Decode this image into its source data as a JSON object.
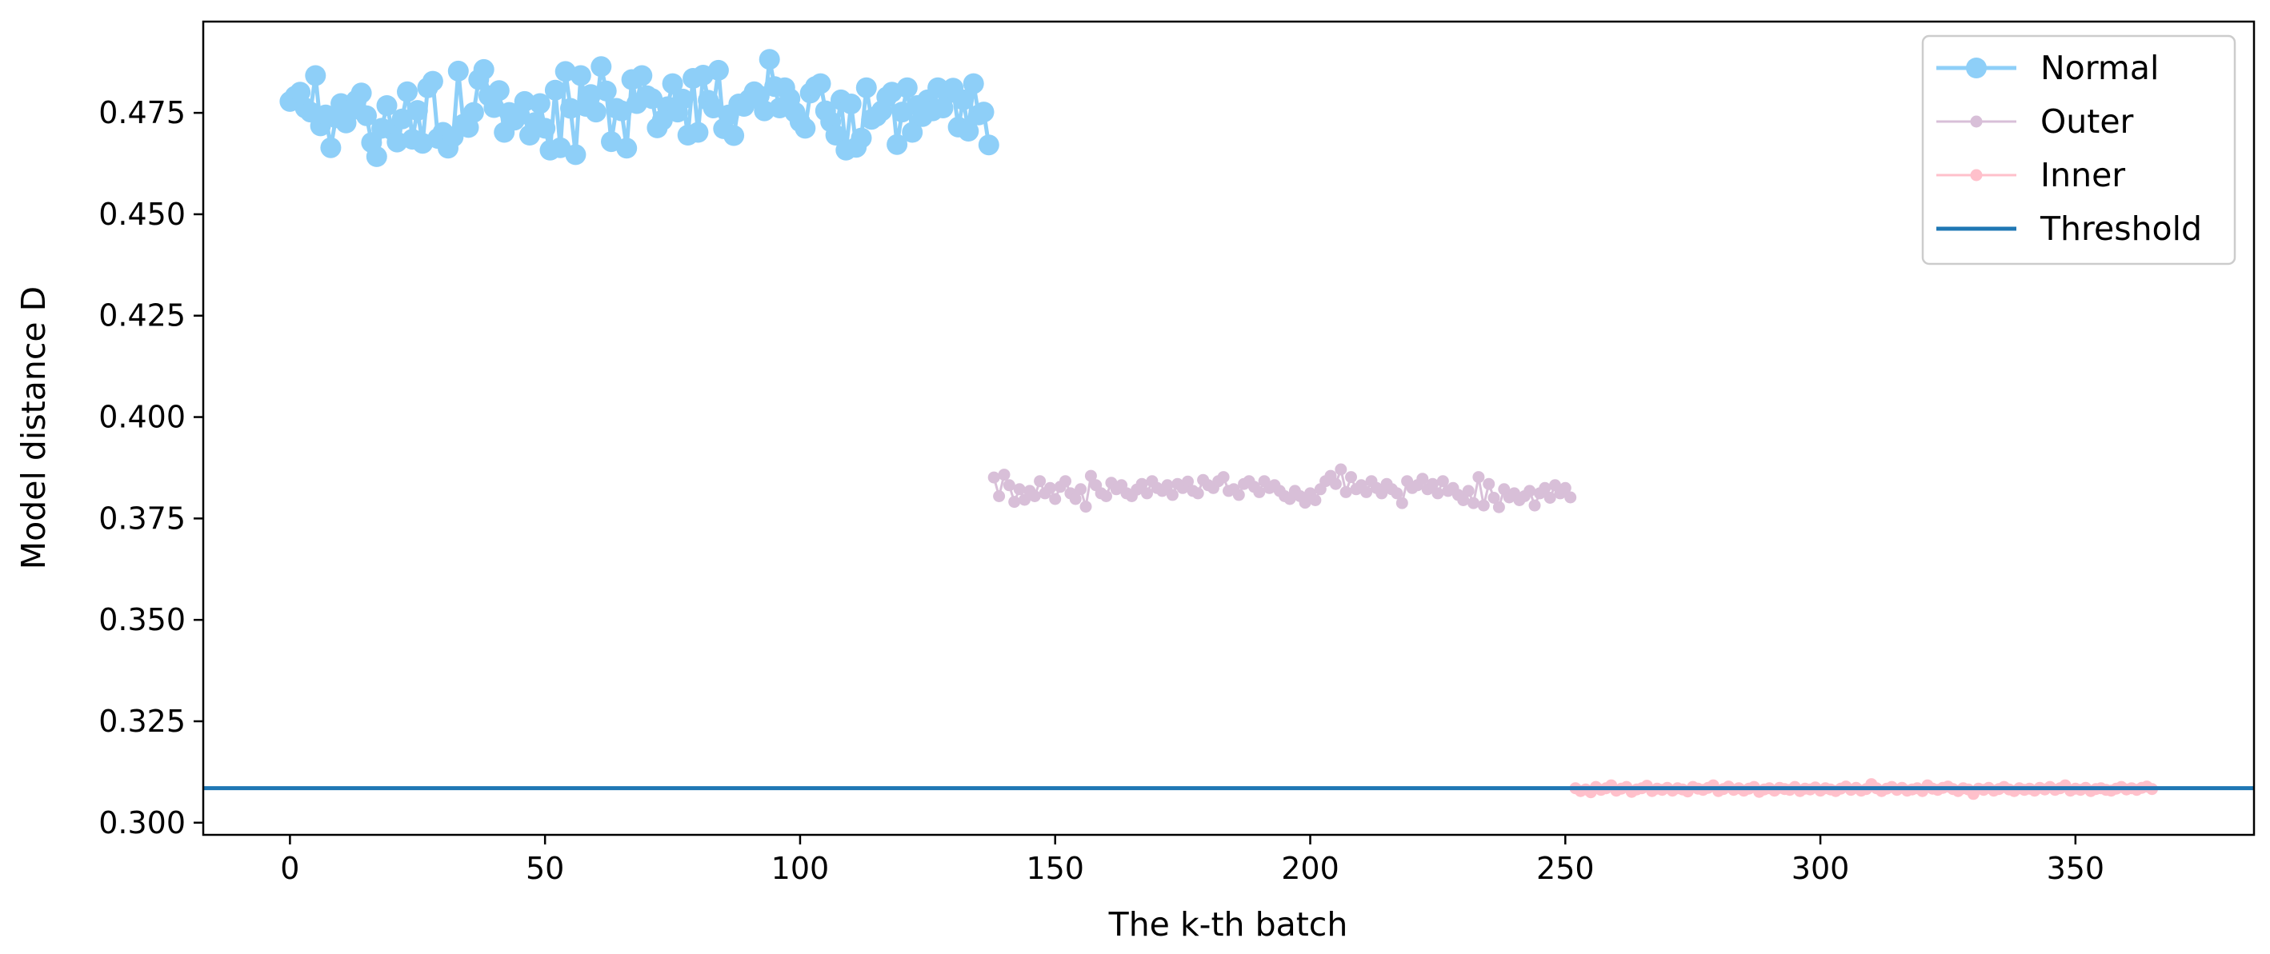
{
  "chart_data": {
    "type": "line",
    "title": "",
    "xlabel": "The k-th batch",
    "ylabel": "Model distance D",
    "xlim": [
      -17,
      385
    ],
    "ylim": [
      0.297,
      0.4975
    ],
    "xticks": [
      0,
      50,
      100,
      150,
      200,
      250,
      300,
      350
    ],
    "yticks": [
      0.3,
      0.325,
      0.35,
      0.375,
      0.4,
      0.425,
      0.45,
      0.475
    ],
    "ytick_labels": [
      "0.300",
      "0.325",
      "0.350",
      "0.375",
      "0.400",
      "0.425",
      "0.450",
      "0.475"
    ],
    "grid": false,
    "legend_position": "top-right",
    "series": [
      {
        "name": "Normal",
        "color": "#8ecff8",
        "marker_size": "large",
        "x_start": 0,
        "x_end": 137,
        "values": [
          0.4778,
          0.4791,
          0.4801,
          0.4762,
          0.4752,
          0.4842,
          0.4718,
          0.4745,
          0.4664,
          0.4738,
          0.4773,
          0.4725,
          0.4756,
          0.4781,
          0.4799,
          0.4743,
          0.4677,
          0.4642,
          0.4712,
          0.4768,
          0.4708,
          0.4678,
          0.4735,
          0.4802,
          0.4685,
          0.4756,
          0.4675,
          0.4812,
          0.4828,
          0.4687,
          0.4702,
          0.4663,
          0.4691,
          0.4853,
          0.4722,
          0.4714,
          0.4751,
          0.4832,
          0.4857,
          0.4792,
          0.4763,
          0.4805,
          0.4702,
          0.4751,
          0.4732,
          0.4745,
          0.4778,
          0.4695,
          0.4726,
          0.4773,
          0.4712,
          0.4658,
          0.4806,
          0.4664,
          0.4852,
          0.4761,
          0.4647,
          0.4842,
          0.4766,
          0.4795,
          0.4752,
          0.4864,
          0.4804,
          0.4679,
          0.4761,
          0.4755,
          0.4663,
          0.4832,
          0.4773,
          0.4842,
          0.4792,
          0.4785,
          0.4713,
          0.4732,
          0.4765,
          0.4822,
          0.4752,
          0.4784,
          0.4695,
          0.4835,
          0.4702,
          0.4843,
          0.4781,
          0.4762,
          0.4855,
          0.4711,
          0.4745,
          0.4694,
          0.4772,
          0.4766,
          0.4783,
          0.4802,
          0.4792,
          0.4755,
          0.4882,
          0.4815,
          0.4762,
          0.4812,
          0.4785,
          0.4751,
          0.4728,
          0.4712,
          0.4799,
          0.4815,
          0.4822,
          0.4755,
          0.4728,
          0.4695,
          0.4782,
          0.4658,
          0.4772,
          0.4665,
          0.4688,
          0.4812,
          0.4734,
          0.4742,
          0.4755,
          0.4789,
          0.4801,
          0.4672,
          0.4752,
          0.4812,
          0.4702,
          0.4768,
          0.4741,
          0.4782,
          0.4755,
          0.4812,
          0.4762,
          0.4798,
          0.4811,
          0.4715,
          0.4782,
          0.4705,
          0.4822,
          0.4745,
          0.4752,
          0.4671
        ]
      },
      {
        "name": "Outer",
        "color": "#d8bfd8",
        "marker_size": "medium",
        "x_start": 138,
        "x_end": 251,
        "values": [
          0.3851,
          0.3805,
          0.3858,
          0.3832,
          0.3791,
          0.3822,
          0.3796,
          0.3818,
          0.3805,
          0.3842,
          0.3812,
          0.3825,
          0.3798,
          0.3828,
          0.3842,
          0.3812,
          0.3798,
          0.3822,
          0.3779,
          0.3855,
          0.3832,
          0.3812,
          0.3805,
          0.3838,
          0.3822,
          0.3832,
          0.3812,
          0.3805,
          0.3821,
          0.3835,
          0.3812,
          0.3842,
          0.3825,
          0.3818,
          0.3832,
          0.3808,
          0.3835,
          0.3825,
          0.3841,
          0.3818,
          0.3812,
          0.3845,
          0.3832,
          0.3825,
          0.3842,
          0.3852,
          0.3818,
          0.3822,
          0.3808,
          0.3835,
          0.3842,
          0.3828,
          0.3815,
          0.3842,
          0.3825,
          0.3832,
          0.3818,
          0.3805,
          0.3798,
          0.3818,
          0.3805,
          0.3789,
          0.3812,
          0.3795,
          0.3822,
          0.3842,
          0.3855,
          0.3835,
          0.3871,
          0.3815,
          0.3852,
          0.3822,
          0.3832,
          0.3815,
          0.3842,
          0.3825,
          0.3812,
          0.3835,
          0.3822,
          0.3812,
          0.3788,
          0.3842,
          0.3825,
          0.3832,
          0.3848,
          0.3822,
          0.3835,
          0.3812,
          0.3842,
          0.3818,
          0.3825,
          0.3808,
          0.3795,
          0.3818,
          0.3788,
          0.3852,
          0.3782,
          0.3835,
          0.3801,
          0.3778,
          0.3822,
          0.3802,
          0.3812,
          0.3795,
          0.3805,
          0.3818,
          0.3782,
          0.3812,
          0.3825,
          0.3801,
          0.3832,
          0.3812,
          0.3825,
          0.3802
        ]
      },
      {
        "name": "Inner",
        "color": "#ffc0cb",
        "marker_size": "medium",
        "x_start": 252,
        "x_end": 365,
        "values": [
          0.3085,
          0.3078,
          0.3082,
          0.3075,
          0.3088,
          0.3081,
          0.3085,
          0.3092,
          0.3079,
          0.3084,
          0.3088,
          0.3076,
          0.3082,
          0.3085,
          0.3091,
          0.3078,
          0.3084,
          0.3081,
          0.3086,
          0.3079,
          0.3085,
          0.3082,
          0.3077,
          0.3088,
          0.3084,
          0.3081,
          0.3086,
          0.3092,
          0.3078,
          0.3083,
          0.3089,
          0.3081,
          0.3085,
          0.3079,
          0.3084,
          0.3088,
          0.3076,
          0.3082,
          0.3085,
          0.3079,
          0.3086,
          0.3083,
          0.3081,
          0.3088,
          0.3078,
          0.3084,
          0.3082,
          0.3087,
          0.3079,
          0.3085,
          0.3082,
          0.3078,
          0.3084,
          0.3089,
          0.3081,
          0.3086,
          0.3079,
          0.3083,
          0.3095,
          0.3085,
          0.3078,
          0.3084,
          0.3088,
          0.3081,
          0.3086,
          0.3079,
          0.3082,
          0.3085,
          0.3078,
          0.3092,
          0.3084,
          0.3081,
          0.3086,
          0.3089,
          0.3083,
          0.3078,
          0.3085,
          0.3082,
          0.3071,
          0.3084,
          0.3081,
          0.3086,
          0.3079,
          0.3083,
          0.3088,
          0.3082,
          0.3078,
          0.3085,
          0.3081,
          0.3084,
          0.3079,
          0.3086,
          0.3082,
          0.3088,
          0.3081,
          0.3085,
          0.3092,
          0.3079,
          0.3084,
          0.3081,
          0.3086,
          0.3078,
          0.3083,
          0.3085,
          0.3081,
          0.3079,
          0.3084,
          0.3088,
          0.3082,
          0.3085,
          0.3081,
          0.3086,
          0.3089,
          0.3083
        ]
      },
      {
        "name": "Threshold",
        "color": "#1f77b4",
        "kind": "hline",
        "y": 0.3085
      }
    ]
  }
}
